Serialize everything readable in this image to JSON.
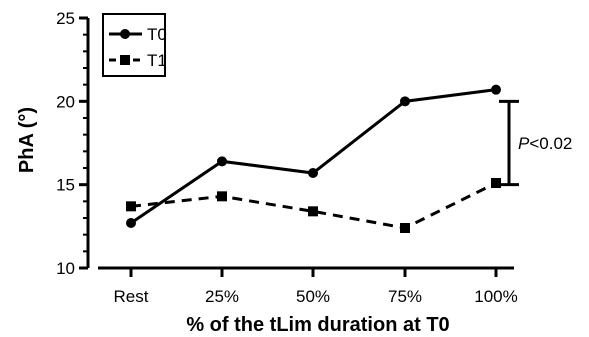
{
  "chart_data": {
    "type": "line",
    "categories": [
      "Rest",
      "25%",
      "50%",
      "75%",
      "100%"
    ],
    "series": [
      {
        "name": "T0",
        "values": [
          12.7,
          16.4,
          15.7,
          20.0,
          20.7
        ],
        "line_style": "solid",
        "marker": "circle"
      },
      {
        "name": "T1",
        "values": [
          13.7,
          14.3,
          13.4,
          12.4,
          15.1
        ],
        "line_style": "dashed",
        "marker": "square"
      }
    ],
    "title": "",
    "xlabel": "% of the tLim duration at T0",
    "ylabel": "PhA (°)",
    "ylim": [
      10,
      25
    ],
    "yticks": [
      "10",
      "15",
      "20",
      "25"
    ],
    "grid": false,
    "legend_position": "top-left",
    "annotation": {
      "label_italic": "P",
      "label_rest": "<0.02",
      "range": [
        15,
        20
      ]
    },
    "colors": {
      "series": "#000000",
      "background": "#ffffff"
    }
  }
}
